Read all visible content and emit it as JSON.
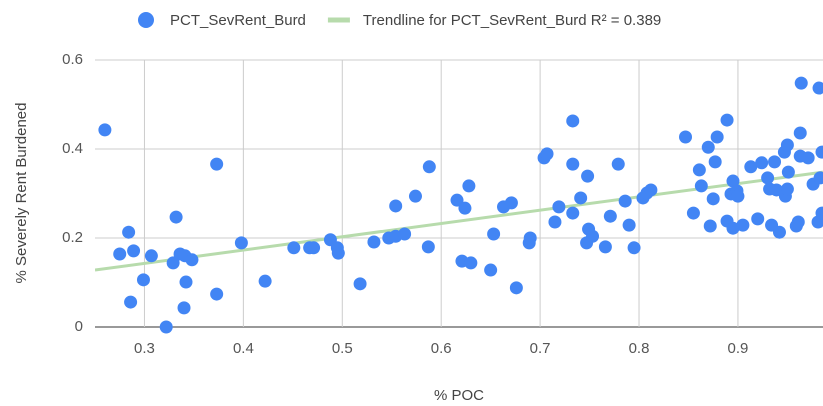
{
  "chart_data": {
    "type": "scatter",
    "x_label": "% POC",
    "y_label": "% Severely Rent Burdened",
    "xlim": [
      0.25,
      0.986
    ],
    "ylim": [
      0,
      0.6
    ],
    "xticks": [
      0.3,
      0.4,
      0.5,
      0.6,
      0.7,
      0.8,
      0.9
    ],
    "yticks": [
      0,
      0.2,
      0.4,
      0.6
    ],
    "grid": true,
    "series": [
      {
        "name": "PCT_SevRent_Burd",
        "color": "#4285f4",
        "x": [
          0.26,
          0.275,
          0.284,
          0.289,
          0.286,
          0.299,
          0.307,
          0.322,
          0.329,
          0.332,
          0.336,
          0.341,
          0.342,
          0.348,
          0.34,
          0.373,
          0.373,
          0.398,
          0.422,
          0.451,
          0.467,
          0.471,
          0.488,
          0.495,
          0.496,
          0.518,
          0.532,
          0.547,
          0.554,
          0.554,
          0.563,
          0.574,
          0.587,
          0.588,
          0.616,
          0.624,
          0.628,
          0.621,
          0.63,
          0.65,
          0.653,
          0.663,
          0.671,
          0.676,
          0.689,
          0.69,
          0.704,
          0.707,
          0.715,
          0.719,
          0.733,
          0.733,
          0.733,
          0.741,
          0.747,
          0.748,
          0.749,
          0.753,
          0.766,
          0.771,
          0.779,
          0.786,
          0.79,
          0.795,
          0.804,
          0.808,
          0.812,
          0.847,
          0.855,
          0.861,
          0.863,
          0.87,
          0.872,
          0.875,
          0.877,
          0.879,
          0.889,
          0.889,
          0.893,
          0.895,
          0.895,
          0.899,
          0.9,
          0.905,
          0.913,
          0.92,
          0.924,
          0.93,
          0.932,
          0.934,
          0.937,
          0.939,
          0.942,
          0.947,
          0.948,
          0.95,
          0.95,
          0.951,
          0.959,
          0.961,
          0.963,
          0.963,
          0.964,
          0.971,
          0.976,
          0.981,
          0.982,
          0.983,
          0.985,
          0.985
        ],
        "values": [
          0.443,
          0.164,
          0.213,
          0.171,
          0.056,
          0.106,
          0.16,
          0.0,
          0.144,
          0.247,
          0.164,
          0.16,
          0.101,
          0.151,
          0.043,
          0.366,
          0.074,
          0.189,
          0.103,
          0.178,
          0.178,
          0.178,
          0.196,
          0.178,
          0.166,
          0.097,
          0.191,
          0.2,
          0.272,
          0.204,
          0.209,
          0.294,
          0.18,
          0.36,
          0.285,
          0.267,
          0.317,
          0.148,
          0.144,
          0.128,
          0.209,
          0.27,
          0.279,
          0.088,
          0.189,
          0.2,
          0.38,
          0.389,
          0.236,
          0.27,
          0.463,
          0.256,
          0.366,
          0.29,
          0.189,
          0.339,
          0.22,
          0.204,
          0.18,
          0.249,
          0.366,
          0.283,
          0.229,
          0.178,
          0.29,
          0.301,
          0.308,
          0.427,
          0.256,
          0.353,
          0.317,
          0.404,
          0.227,
          0.288,
          0.371,
          0.427,
          0.465,
          0.238,
          0.299,
          0.328,
          0.222,
          0.306,
          0.294,
          0.229,
          0.36,
          0.243,
          0.369,
          0.335,
          0.31,
          0.229,
          0.371,
          0.308,
          0.213,
          0.393,
          0.294,
          0.409,
          0.31,
          0.348,
          0.227,
          0.236,
          0.436,
          0.384,
          0.548,
          0.38,
          0.321,
          0.236,
          0.537,
          0.335,
          0.256,
          0.393
        ]
      },
      {
        "name": "Trendline for PCT_SevRent_Burd R² = 0.389",
        "color": "#b7dbac",
        "type": "line",
        "x": [
          0.25,
          0.986
        ],
        "values": [
          0.128,
          0.348
        ]
      }
    ]
  }
}
